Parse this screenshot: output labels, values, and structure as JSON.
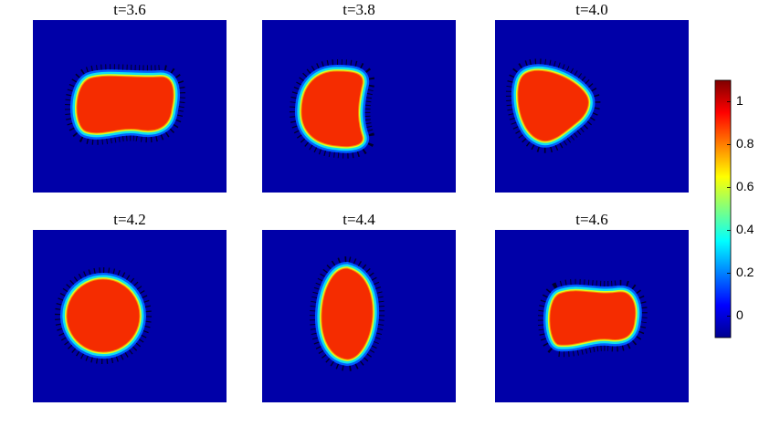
{
  "chart_data": {
    "type": "heatmap",
    "panels": [
      {
        "title": "t=3.6"
      },
      {
        "title": "t=3.8"
      },
      {
        "title": "t=4.0"
      },
      {
        "title": "t=4.2"
      },
      {
        "title": "t=4.4"
      },
      {
        "title": "t=4.6"
      }
    ],
    "colorbar": {
      "lim": [
        -0.1,
        1.1
      ],
      "ticks": [
        0,
        0.2,
        0.4,
        0.6,
        0.8,
        1
      ]
    }
  }
}
